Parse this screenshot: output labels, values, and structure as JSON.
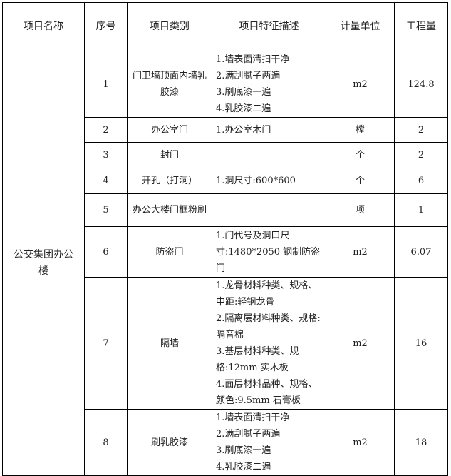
{
  "headers": [
    "项目名称",
    "序号",
    "项目类别",
    "项目特征描述",
    "计量单位",
    "工程量"
  ],
  "project_name": "公交集团办公楼",
  "rows": [
    {
      "no": "1",
      "category": "门卫墙顶面内墙乳胶漆",
      "desc": [
        "1.墙表面清扫干净",
        "2.满刮腻子两遍",
        "3.刷底漆一遍",
        "4.乳胶漆二遍"
      ],
      "unit": "m2",
      "qty": "124.8"
    },
    {
      "no": "2",
      "category": "办公室门",
      "desc": [
        "1.办公室木门"
      ],
      "unit": "樘",
      "qty": "2"
    },
    {
      "no": "3",
      "category": "封门",
      "desc": [],
      "unit": "个",
      "qty": "2"
    },
    {
      "no": "4",
      "category": "开孔（打洞）",
      "desc": [
        "1.洞尺寸:600*600"
      ],
      "unit": "个",
      "qty": "6"
    },
    {
      "no": "5",
      "category": "办公大楼门框粉刷",
      "desc": [],
      "unit": "项",
      "qty": "1"
    },
    {
      "no": "6",
      "category": "防盗门",
      "desc": [
        "1.门代号及洞口尺寸:1480*2050 钢制防盗门"
      ],
      "unit": "m2",
      "qty": "6.07"
    },
    {
      "no": "7",
      "category": "隔墙",
      "desc": [
        "1.龙骨材料种类、规格、中距:轻钢龙骨",
        "2.隔离层材料种类、规格:隔音棉",
        "3.基层材料种类、规格:12mm 实木板",
        "4.面层材料品种、规格、颜色:9.5mm 石膏板"
      ],
      "unit": "m2",
      "qty": "16"
    },
    {
      "no": "8",
      "category": "刷乳胶漆",
      "desc": [
        "1.墙表面清扫干净",
        "2.满刮腻子两遍",
        "3.刷底漆一遍",
        "4.乳胶漆二遍"
      ],
      "unit": "m2",
      "qty": "18"
    }
  ]
}
